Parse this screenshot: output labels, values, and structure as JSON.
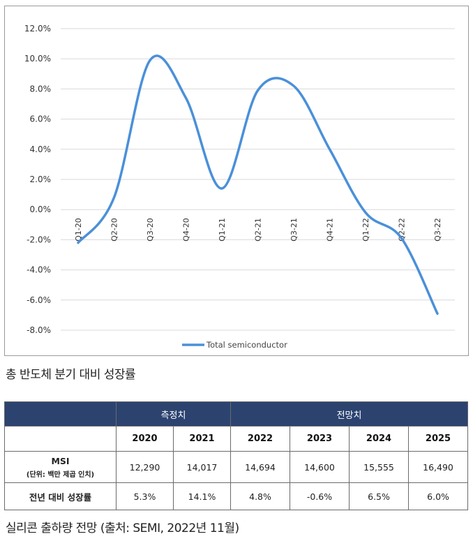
{
  "chart_data": {
    "type": "line",
    "categories": [
      "Q1-20",
      "Q2-20",
      "Q3-20",
      "Q4-20",
      "Q1-21",
      "Q2-21",
      "Q3-21",
      "Q4-21",
      "Q1-22",
      "Q2-22",
      "Q3-22"
    ],
    "series": [
      {
        "name": "Total semiconductor",
        "values": [
          -2.2,
          0.8,
          9.9,
          7.4,
          1.4,
          7.9,
          8.2,
          4.0,
          -0.2,
          -1.9,
          -6.9
        ],
        "color": "#4a90d9"
      }
    ],
    "ylim": [
      -8,
      12
    ],
    "yticks": [
      12,
      10,
      8,
      6,
      4,
      2,
      0,
      -2,
      -4,
      -6,
      -8
    ],
    "ytick_labels": [
      "12.0%",
      "10.0%",
      "8.0%",
      "6.0%",
      "4.0%",
      "2.0%",
      "0.0%",
      "-2.0%",
      "-4.0%",
      "-6.0%",
      "-8.0%"
    ],
    "grid": true,
    "legend": "bottom-center"
  },
  "chart_caption": "총 반도체 분기 대비 성장률",
  "table": {
    "group_headers": {
      "measured": "측정치",
      "forecast": "전망치"
    },
    "years": [
      "2020",
      "2021",
      "2022",
      "2023",
      "2024",
      "2025"
    ],
    "rows": [
      {
        "label": "MSI",
        "sublabel": "(단위: 백만 제곱 인치)",
        "values": [
          "12,290",
          "14,017",
          "14,694",
          "14,600",
          "15,555",
          "16,490"
        ]
      },
      {
        "label": "전년 대비 성장률",
        "values": [
          "5.3%",
          "14.1%",
          "4.8%",
          "-0.6%",
          "6.5%",
          "6.0%"
        ]
      }
    ]
  },
  "table_caption": "실리콘 출하량 전망 (출처: SEMI, 2022년 11월)"
}
